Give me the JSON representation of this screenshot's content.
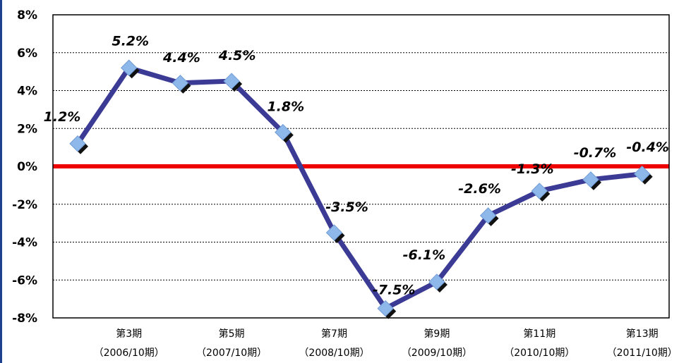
{
  "chart_data": {
    "type": "line",
    "title": "",
    "xlabel": "",
    "ylabel": "",
    "ylim": [
      -8,
      8
    ],
    "yticks": [
      "8%",
      "6%",
      "4%",
      "2%",
      "0%",
      "-2%",
      "-4%",
      "-6%",
      "-8%"
    ],
    "x_tick_labels": [
      {
        "index": 1,
        "line1": "第3期",
        "line2": "（2006/10期）"
      },
      {
        "index": 3,
        "line1": "第5期",
        "line2": "（2007/10期）"
      },
      {
        "index": 5,
        "line1": "第7期",
        "line2": "（2008/10期）"
      },
      {
        "index": 7,
        "line1": "第9期",
        "line2": "（2009/10期）"
      },
      {
        "index": 9,
        "line1": "第11期",
        "line2": "（2010/10期）"
      },
      {
        "index": 11,
        "line1": "第13期",
        "line2": "（2011/10期）"
      }
    ],
    "values": [
      1.2,
      5.2,
      4.4,
      4.5,
      1.8,
      -3.5,
      -7.5,
      -6.1,
      -2.6,
      -1.3,
      -0.7,
      -0.4
    ],
    "data_labels": [
      "1.2%",
      "5.2%",
      "4.4%",
      "4.5%",
      "1.8%",
      "-3.5%",
      "-7.5%",
      "-6.1%",
      "-2.6%",
      "-1.3%",
      "-0.7%",
      "-0.4%"
    ],
    "grid": "horizontal-dotted",
    "zero_line_color": "#ee0000",
    "line_color": "#3b3b96",
    "marker_color": "#8fb8ea",
    "marker_shadow_color": "#111111"
  }
}
